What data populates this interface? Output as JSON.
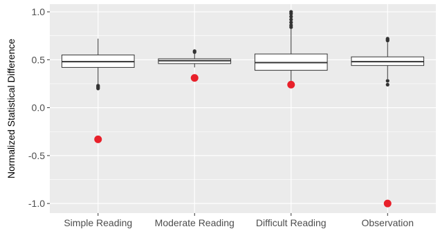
{
  "chart_data": {
    "type": "box",
    "title": "",
    "xlabel": "",
    "ylabel": "Normalized Statistical Difference",
    "ylim": [
      -1.1,
      1.08
    ],
    "yticks": [
      -1.0,
      -0.5,
      0.0,
      0.5,
      1.0
    ],
    "ytick_labels": [
      "-1.0",
      "-0.5",
      "0.0",
      "0.5",
      "1.0"
    ],
    "grid": true,
    "background": "#ebebeb",
    "colors": {
      "box_fill": "#ffffff",
      "box_line": "#333333",
      "outlier": "#333333",
      "highlight_point": "#e8202a"
    },
    "categories": [
      "Simple Reading",
      "Moderate Reading",
      "Difficult Reading",
      "Observation"
    ],
    "boxes": [
      {
        "category": "Simple Reading",
        "whisker_low": 0.25,
        "q1": 0.42,
        "median": 0.48,
        "q3": 0.55,
        "whisker_high": 0.72,
        "outliers": [
          0.23,
          0.22,
          0.21,
          0.2
        ]
      },
      {
        "category": "Moderate Reading",
        "whisker_low": 0.42,
        "q1": 0.46,
        "median": 0.49,
        "q3": 0.51,
        "whisker_high": 0.57,
        "outliers": [
          0.59,
          0.58
        ]
      },
      {
        "category": "Difficult Reading",
        "whisker_low": 0.25,
        "q1": 0.39,
        "median": 0.47,
        "q3": 0.56,
        "whisker_high": 0.82,
        "outliers": [
          0.84,
          0.86,
          0.89,
          0.92,
          0.95,
          0.98,
          1.0
        ]
      },
      {
        "category": "Observation",
        "whisker_low": 0.3,
        "q1": 0.44,
        "median": 0.48,
        "q3": 0.53,
        "whisker_high": 0.68,
        "outliers": [
          0.7,
          0.71,
          0.72,
          0.28,
          0.24
        ]
      }
    ],
    "highlight_points": [
      {
        "category": "Simple Reading",
        "y": -0.33
      },
      {
        "category": "Moderate Reading",
        "y": 0.31
      },
      {
        "category": "Difficult Reading",
        "y": 0.24
      },
      {
        "category": "Observation",
        "y": -1.0
      }
    ]
  }
}
